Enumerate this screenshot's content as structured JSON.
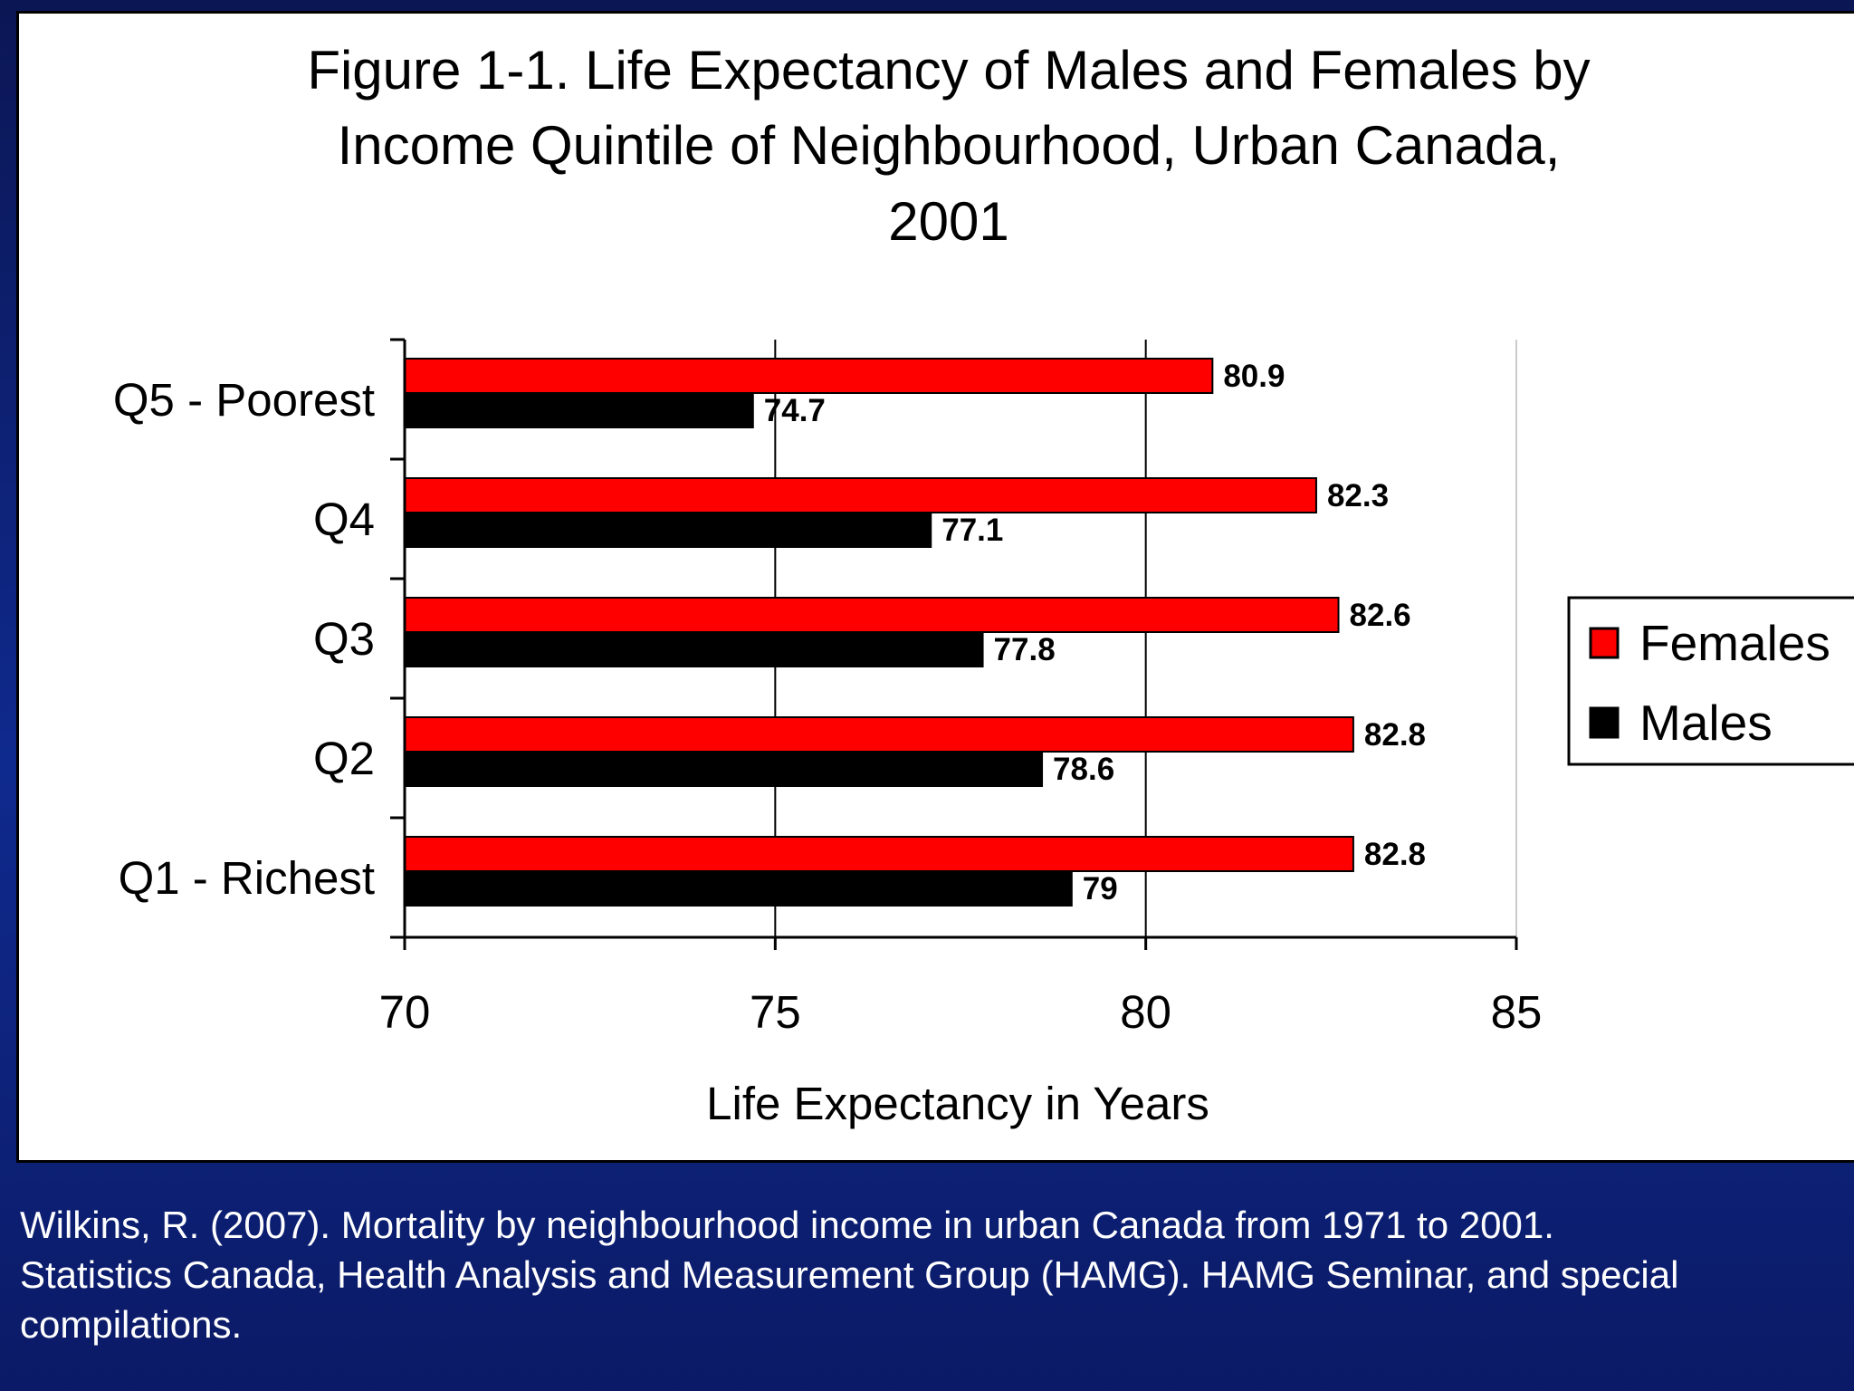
{
  "chart_data": {
    "type": "bar",
    "orientation": "horizontal",
    "title_lines": [
      "Figure 1-1. Life Expectancy of Males and Females by",
      "Income Quintile of Neighbourhood, Urban Canada,",
      "2001"
    ],
    "categories": [
      "Q5 - Poorest",
      "Q4",
      "Q3",
      "Q2",
      "Q1 - Richest"
    ],
    "series": [
      {
        "name": "Females",
        "color": "#ff0000",
        "values": [
          80.9,
          82.3,
          82.6,
          82.8,
          82.8
        ],
        "labels": [
          "80.9",
          "82.3",
          "82.6",
          "82.8",
          "82.8"
        ]
      },
      {
        "name": "Males",
        "color": "#000000",
        "values": [
          74.7,
          77.1,
          77.8,
          78.6,
          79
        ],
        "labels": [
          "74.7",
          "77.1",
          "77.8",
          "78.6",
          "79"
        ]
      }
    ],
    "xlabel": "Life Expectancy in Years",
    "xlim": [
      70,
      85
    ],
    "xticks": [
      "70",
      "75",
      "80",
      "85"
    ],
    "grid": "vertical",
    "legend_position": "right"
  },
  "citation": {
    "lines": [
      "Wilkins, R. (2007). Mortality by neighbourhood income in urban Canada from 1971 to 2001.",
      "Statistics Canada, Health Analysis and Measurement Group (HAMG). HAMG Seminar, and special",
      "compilations."
    ]
  }
}
